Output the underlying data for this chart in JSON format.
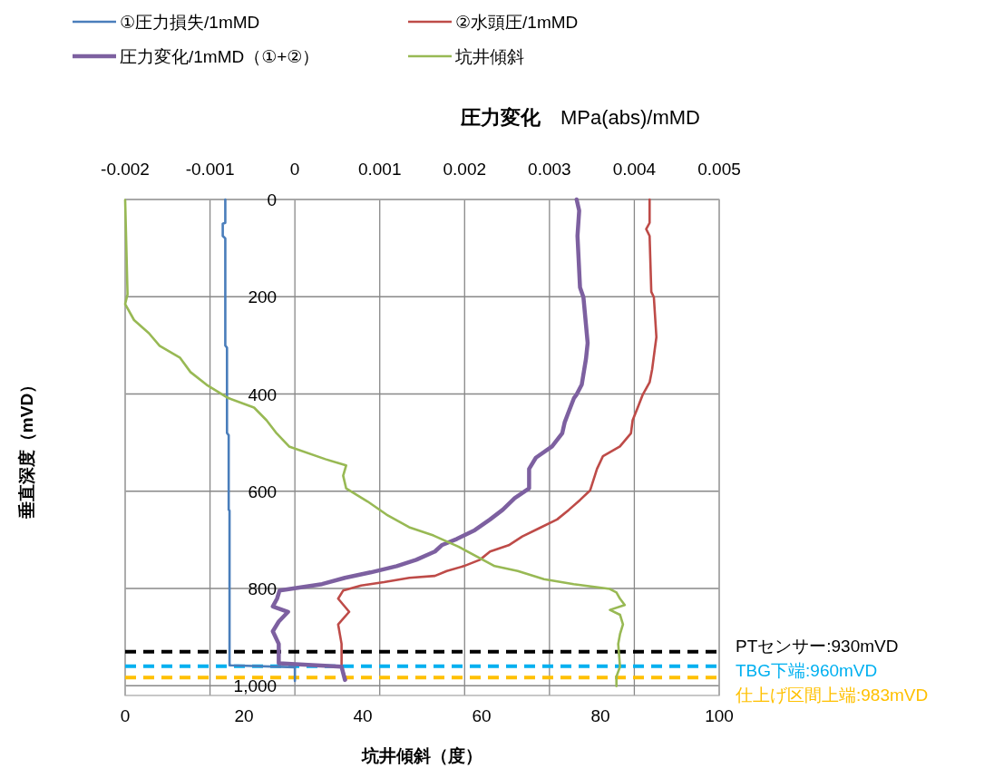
{
  "chart_data": {
    "type": "line",
    "xlabel": "坑井傾斜（度）",
    "ylabel": "垂直深度（mVD）",
    "x2label": "**圧力変化**　MPa(abs)/mMD",
    "xlim": [
      0,
      100
    ],
    "xticks": [
      0,
      20,
      40,
      60,
      80,
      100
    ],
    "x2lim": [
      -0.002,
      0.005
    ],
    "x2ticks": [
      -0.002,
      -0.001,
      0,
      0.001,
      0.002,
      0.003,
      0.004,
      0.005
    ],
    "ylim": [
      1020,
      0
    ],
    "yticks": [
      0,
      200,
      400,
      600,
      800,
      {
        "value": 1000,
        "label": "1,000"
      }
    ],
    "grid": true,
    "legend": "top",
    "series": [
      {
        "name": "①圧力損失/1mMD",
        "color": "#4a7ebb",
        "axis": "x2",
        "x": [
          -0.00082,
          -0.00082,
          -0.00085,
          -0.00085,
          -0.00082,
          -0.00082,
          -0.0008,
          -0.0008,
          -0.00078,
          -0.00078,
          -0.00077,
          -0.00077,
          0.0,
          0.0
        ],
        "values": [
          0,
          48,
          50,
          75,
          80,
          300,
          305,
          480,
          485,
          638,
          640,
          958,
          962,
          990
        ]
      },
      {
        "name": "②水頭圧/1mMD",
        "color": "#be4b48",
        "axis": "x2",
        "x": [
          0.00418,
          0.00418,
          0.00414,
          0.00418,
          0.0042,
          0.00423,
          0.00426,
          0.00424,
          0.00421,
          0.00418,
          0.0041,
          0.00404,
          0.00398,
          0.00396,
          0.00383,
          0.00363,
          0.00356,
          0.00348,
          0.00336,
          0.00323,
          0.00309,
          0.00288,
          0.00268,
          0.00252,
          0.0023,
          0.00218,
          0.00199,
          0.00179,
          0.00165,
          0.00135,
          0.00105,
          0.00078,
          0.00057,
          0.00051,
          0.00064,
          0.00051,
          0.00055,
          0.00055,
          0.00059,
          0.0006
        ],
        "values": [
          0,
          48,
          61,
          75,
          190,
          201,
          283,
          309,
          349,
          376,
          401,
          428,
          454,
          481,
          508,
          528,
          554,
          598,
          618,
          638,
          658,
          676,
          693,
          711,
          724,
          741,
          754,
          764,
          774,
          778,
          787,
          794,
          804,
          821,
          848,
          874,
          914,
          961,
          981,
          988
        ]
      },
      {
        "name": "圧力変化/1mMD（①+②）",
        "color": "#7d60a0",
        "axis": "x2",
        "x": [
          0.00332,
          0.00335,
          0.00333,
          0.00336,
          0.0034,
          0.00345,
          0.00343,
          0.00338,
          0.00332,
          0.00329,
          0.00323,
          0.00318,
          0.00315,
          0.00303,
          0.00284,
          0.00276,
          0.00276,
          0.00259,
          0.00245,
          0.0023,
          0.00212,
          0.00191,
          0.00173,
          0.00165,
          0.00143,
          0.0012,
          0.00089,
          0.00059,
          0.00032,
          -0.00018,
          -0.00021,
          -0.00026,
          -8e-05,
          -0.00019,
          -0.00026,
          -0.00019,
          -0.00019,
          0.00055,
          0.00059
        ],
        "values": [
          0,
          23,
          75,
          181,
          201,
          295,
          328,
          381,
          401,
          408,
          435,
          458,
          481,
          508,
          531,
          554,
          594,
          614,
          638,
          658,
          680,
          698,
          711,
          724,
          741,
          754,
          767,
          778,
          791,
          804,
          821,
          837,
          848,
          868,
          888,
          914,
          954,
          961,
          988
        ]
      },
      {
        "name": "坑井傾斜",
        "color": "#98b954",
        "x": [
          0,
          0.4,
          0,
          1.5,
          4.0,
          5.8,
          9.2,
          11.0,
          13.7,
          17.3,
          21.7,
          23.8,
          25.5,
          27.6,
          33.7,
          37.2,
          36.7,
          37.2,
          40.8,
          44.0,
          47.8,
          51.9,
          56.1,
          62.2,
          66.1,
          70.5,
          75.5,
          81.6,
          82.7,
          83.3,
          84.1,
          81.6,
          83.3,
          83.8,
          83.3,
          83.0,
          83.3,
          82.7,
          82.7
        ],
        "values": [
          1,
          195,
          215,
          248,
          275,
          301,
          325,
          355,
          381,
          408,
          428,
          454,
          481,
          508,
          534,
          547,
          568,
          594,
          621,
          648,
          674,
          691,
          714,
          754,
          764,
          781,
          791,
          801,
          808,
          821,
          834,
          844,
          854,
          874,
          894,
          914,
          961,
          981,
          1001
        ]
      }
    ],
    "ref_lines": [
      {
        "axis": "y",
        "value": 930,
        "label": "PTセンサー:930mVD",
        "color": "#000000",
        "line_style": "dashed"
      },
      {
        "axis": "y",
        "value": 960,
        "label": "TBG下端:960mVD",
        "color": "#00b0f0",
        "line_style": "dashed"
      },
      {
        "axis": "y",
        "value": 983,
        "label": "仕上げ区間上端:983mVD",
        "color": "#ffc000",
        "line_style": "dashed"
      }
    ]
  }
}
